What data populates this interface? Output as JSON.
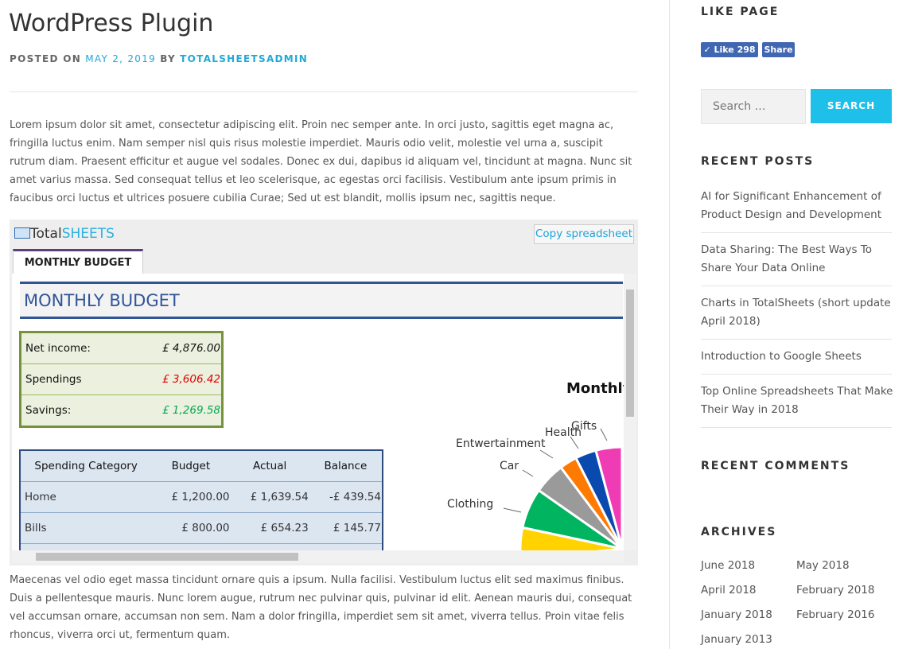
{
  "post": {
    "title": "WordPress Plugin",
    "meta": {
      "posted_on": "POSTED ON",
      "date": "MAY 2, 2019",
      "by": "BY",
      "author": "TOTALSHEETSADMIN"
    },
    "intro_lines": [
      "Lorem ipsum dolor sit amet, consectetur adipiscing elit. Proin nec semper ante. In orci justo, sagittis eget magna ac,",
      "fringilla luctus enim. Nam semper nisl quis risus molestie imperdiet. Mauris odio velit, molestie vel urna a, suscipit",
      "rutrum diam. Praesent efficitur et augue vel sodales. Donec ex dui, dapibus id aliquam vel, tincidunt at magna. Nunc sit",
      "amet varius massa. Sed consequat tellus et leo scelerisque, ac egestas orci facilisis. Vestibulum ante ipsum primis in",
      "faucibus orci luctus et ultrices posuere cubilia Curae; Sed ut est blandit, mollis ipsum nec, sagittis neque."
    ],
    "outro_lines": [
      "Maecenas vel odio eget massa tincidunt ornare quis a ipsum. Nulla facilisi. Vestibulum luctus elit sed maximus finibus.",
      "Duis a pellentesque mauris. Nunc lorem augue, rutrum nec pulvinar quis, pulvinar id elit. Aenean mauris dui, consequat",
      "vel accumsan ornare, accumsan non sem. Nam a dolor fringilla, imperdiet sem sit amet, viverra tellus. Proin vitae felis",
      "rhoncus, viverra orci ut, fermentum quam."
    ]
  },
  "embed": {
    "logo": {
      "first": "Total",
      "second": "SHEETS"
    },
    "copy_button": "Copy spreadsheet",
    "tab": "MONTHLY BUDGET",
    "sheet": {
      "heading": "MONTHLY BUDGET",
      "summary": [
        [
          "Net income:",
          "£ 4,876.00"
        ],
        [
          "Spendings",
          "£ 3,606.42"
        ],
        [
          "Savings:",
          "£ 1,269.58"
        ]
      ],
      "table": {
        "columns": [
          "Spending Category",
          "Budget",
          "Actual",
          "Balance"
        ],
        "rows": [
          [
            "Home",
            "£ 1,200.00",
            "£ 1,639.54",
            "-£ 439.54"
          ],
          [
            "Bills",
            "£ 800.00",
            "£ 654.23",
            "£ 145.77"
          ]
        ]
      },
      "chart": {
        "title": "Monthly",
        "labels": [
          "Gifts",
          "Health",
          "Entwertainment",
          "Car",
          "Clothing"
        ]
      }
    }
  },
  "sidebar": {
    "like_page": {
      "heading": "LIKE PAGE",
      "like": "Like 298",
      "share": "Share"
    },
    "search": {
      "placeholder": "Search …",
      "button": "SEARCH"
    },
    "recent_posts": {
      "heading": "RECENT POSTS",
      "items": [
        [
          "AI for Significant Enhancement of",
          "Product Design and Development"
        ],
        [
          "Data Sharing: The Best Ways To",
          "Share Your Data Online"
        ],
        [
          "Charts in TotalSheets (short update",
          "April 2018)"
        ],
        [
          "Introduction to Google Sheets"
        ],
        [
          "Top Online Spreadsheets That Make",
          "Their Way in 2018"
        ]
      ]
    },
    "recent_comments": {
      "heading": "RECENT COMMENTS"
    },
    "archives": {
      "heading": "ARCHIVES",
      "items": [
        "June 2018",
        "May 2018",
        "April 2018",
        "February 2018",
        "January 2018",
        "February 2016",
        "January 2013"
      ]
    }
  }
}
